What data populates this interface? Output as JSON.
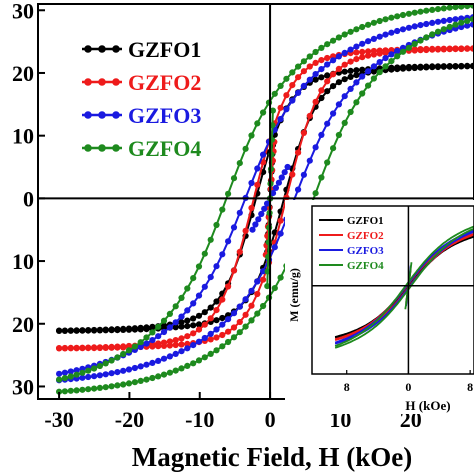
{
  "main_chart": {
    "chart_data": {
      "type": "line",
      "xlabel": "Magnetic Field, H (kOe)",
      "ylabel": "",
      "xlim": [
        -33,
        29
      ],
      "ylim": [
        -32,
        31
      ],
      "x_ticks": [
        -30,
        -20,
        -10,
        0,
        10,
        20
      ],
      "x_tick_labels": [
        "-30",
        "-20",
        "-10",
        "0",
        "10",
        "20"
      ],
      "y_ticks": [
        30,
        20,
        10,
        0,
        -10,
        -20,
        -30
      ],
      "y_tick_labels": [
        "30",
        "20",
        "10",
        "0",
        "10",
        "20",
        "30"
      ],
      "grid": false,
      "legend_position": "top-left",
      "series": [
        {
          "name": "GZFO1",
          "color": "#000000",
          "Ms": 21.2,
          "k": 0.22,
          "a": 0.85,
          "Hc": 2.0,
          "lead_x": 0.4,
          "lead_y": 8.5
        },
        {
          "name": "GZFO2",
          "color": "#ee1b1b",
          "Ms": 24.0,
          "k": 0.2,
          "a": 0.9,
          "Hc": 2.3,
          "lead_x": 0.6,
          "lead_y": 9.0
        },
        {
          "name": "GZFO3",
          "color": "#1a1ae0",
          "Ms": 30.0,
          "k": 0.16,
          "a": 0.4,
          "Hc": 3.5,
          "lead_x": 2.5,
          "lead_y": 5.0
        },
        {
          "name": "GZFO4",
          "color": "#1e8a1e",
          "Ms": 31.5,
          "k": 0.17,
          "a": 0.35,
          "Hc": 6.2,
          "lead_x": 0.4,
          "lead_y": 14.0
        }
      ]
    }
  },
  "inset_chart": {
    "chart_data": {
      "type": "line",
      "xlabel": "H (kOe)",
      "ylabel": "M (emu/g)",
      "xlim": [
        -12.5,
        8.5
      ],
      "ylim": [
        -10.5,
        9.5
      ],
      "x_ticks": [
        -8,
        0,
        8
      ],
      "x_tick_labels": [
        "8",
        "0",
        "8"
      ],
      "grid": false,
      "legend_position": "top-left",
      "series": [
        {
          "name": "GZFO1",
          "color": "#000000",
          "Ms": 7.8,
          "k": 0.22,
          "a": 0.5,
          "Hc": 0.15,
          "lead_x": 0.3,
          "lead_y": 2.0
        },
        {
          "name": "GZFO2",
          "color": "#ee1b1b",
          "Ms": 8.3,
          "k": 0.21,
          "a": 0.5,
          "Hc": 0.2,
          "lead_x": 0.3,
          "lead_y": 2.2
        },
        {
          "name": "GZFO3",
          "color": "#1a1ae0",
          "Ms": 9.0,
          "k": 0.2,
          "a": 0.5,
          "Hc": 0.25,
          "lead_x": 0.3,
          "lead_y": 2.4
        },
        {
          "name": "GZFO4",
          "color": "#1e8a1e",
          "Ms": 9.8,
          "k": 0.19,
          "a": 0.5,
          "Hc": 0.35,
          "lead_x": 0.4,
          "lead_y": 2.8
        }
      ]
    }
  }
}
